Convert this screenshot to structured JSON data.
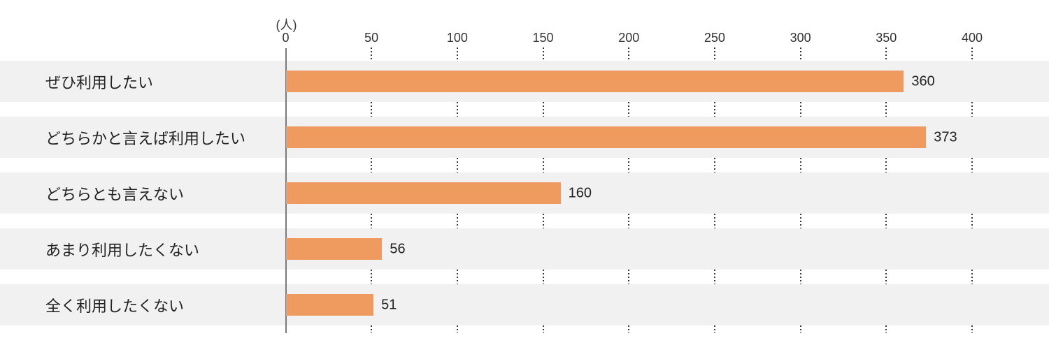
{
  "chart_data": {
    "type": "bar",
    "orientation": "horizontal",
    "title": "",
    "unit_label": "(人)",
    "categories": [
      "ぜひ利用したい",
      "どちらかと言えば利用したい",
      "どちらとも言えない",
      "あまり利用したくない",
      "全く利用したくない"
    ],
    "values": [
      360,
      373,
      160,
      56,
      51
    ],
    "value_labels": [
      "360",
      "373",
      "160",
      "56",
      "51"
    ],
    "xlim": [
      0,
      400
    ],
    "tick_values": [
      0,
      50,
      100,
      150,
      200,
      250,
      300,
      350,
      400
    ],
    "tick_labels": [
      "0",
      "50",
      "100",
      "150",
      "200",
      "250",
      "300",
      "350",
      "400"
    ],
    "grid": "dotted-vertical-in-gaps",
    "legend_position": "none",
    "colors": {
      "bar": "#EF9A5F",
      "row_stripe": "#F1F1F1",
      "background": "#FFFFFF",
      "text": "#222222",
      "tick_text": "#333333",
      "axis_line": "#7A7A7A",
      "gridline_dots": "#3A3A3A"
    }
  }
}
